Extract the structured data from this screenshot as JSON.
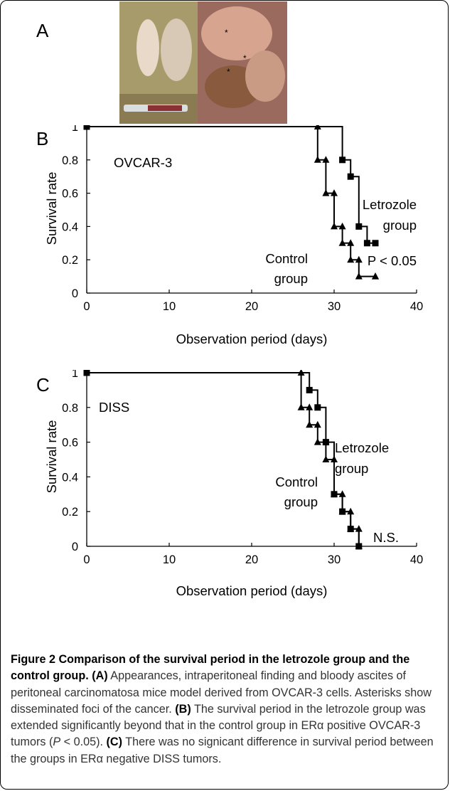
{
  "panels": {
    "a": "A",
    "b": "B",
    "c": "C"
  },
  "chart_data": [
    {
      "type": "line",
      "title": "OVCAR-3",
      "xlabel": "Observation period (days)",
      "ylabel": "Survival rate",
      "xlim": [
        0,
        40
      ],
      "ylim": [
        0,
        1
      ],
      "xticks": [
        0,
        10,
        20,
        30,
        40
      ],
      "yticks": [
        0,
        0.2,
        0.4,
        0.6,
        0.8,
        1
      ],
      "grid": false,
      "series": [
        {
          "name": "Control group",
          "marker": "triangle",
          "x": [
            0,
            28,
            29,
            30,
            31,
            32,
            33,
            35
          ],
          "y": [
            1,
            0.8,
            0.6,
            0.4,
            0.3,
            0.2,
            0.1,
            0.1
          ]
        },
        {
          "name": "Letrozole group",
          "marker": "square",
          "x": [
            0,
            31,
            32,
            33,
            34,
            35
          ],
          "y": [
            1,
            0.8,
            0.7,
            0.4,
            0.3,
            0.3
          ]
        }
      ],
      "annotations": [
        "Control group",
        "Letrozole group",
        "P < 0.05"
      ]
    },
    {
      "type": "line",
      "title": "DISS",
      "xlabel": "Observation period (days)",
      "ylabel": "Survival rate",
      "xlim": [
        0,
        40
      ],
      "ylim": [
        0,
        1
      ],
      "xticks": [
        0,
        10,
        20,
        30,
        40
      ],
      "yticks": [
        0,
        0.2,
        0.4,
        0.6,
        0.8,
        1
      ],
      "grid": false,
      "series": [
        {
          "name": "Control group",
          "marker": "triangle",
          "x": [
            0,
            26,
            27,
            28,
            29,
            30,
            31,
            32,
            33
          ],
          "y": [
            1,
            0.8,
            0.7,
            0.6,
            0.5,
            0.3,
            0.2,
            0.1,
            0
          ]
        },
        {
          "name": "Letrozole group",
          "marker": "square",
          "x": [
            0,
            27,
            28,
            29,
            30,
            31,
            32,
            33
          ],
          "y": [
            1,
            0.9,
            0.8,
            0.6,
            0.3,
            0.2,
            0.1,
            0
          ]
        }
      ],
      "annotations": [
        "Control group",
        "Letrozole group",
        "N.S."
      ]
    }
  ],
  "caption": {
    "lead": "Figure 2 Comparison of the survival period in the letrozole group and the control group.",
    "a_label": "(A)",
    "a_text": " Appearances, intraperitoneal finding and bloody ascites of peritoneal carcinomatosa mice model derived from OVCAR-3 cells. Asterisks show disseminated foci of the cancer. ",
    "b_label": "(B)",
    "b_text1": " The survival period in the letrozole group was extended significantly beyond that in the control group in ERα positive OVCAR-3 tumors (",
    "b_p": "P",
    "b_text2": " < 0.05). ",
    "c_label": "(C)",
    "c_text": " There was no signicant difference in survival period between the groups in ERα negative DISS tumors."
  },
  "colors": {
    "line": "#000000",
    "caption_text": "#333333",
    "frame": "#000000"
  }
}
